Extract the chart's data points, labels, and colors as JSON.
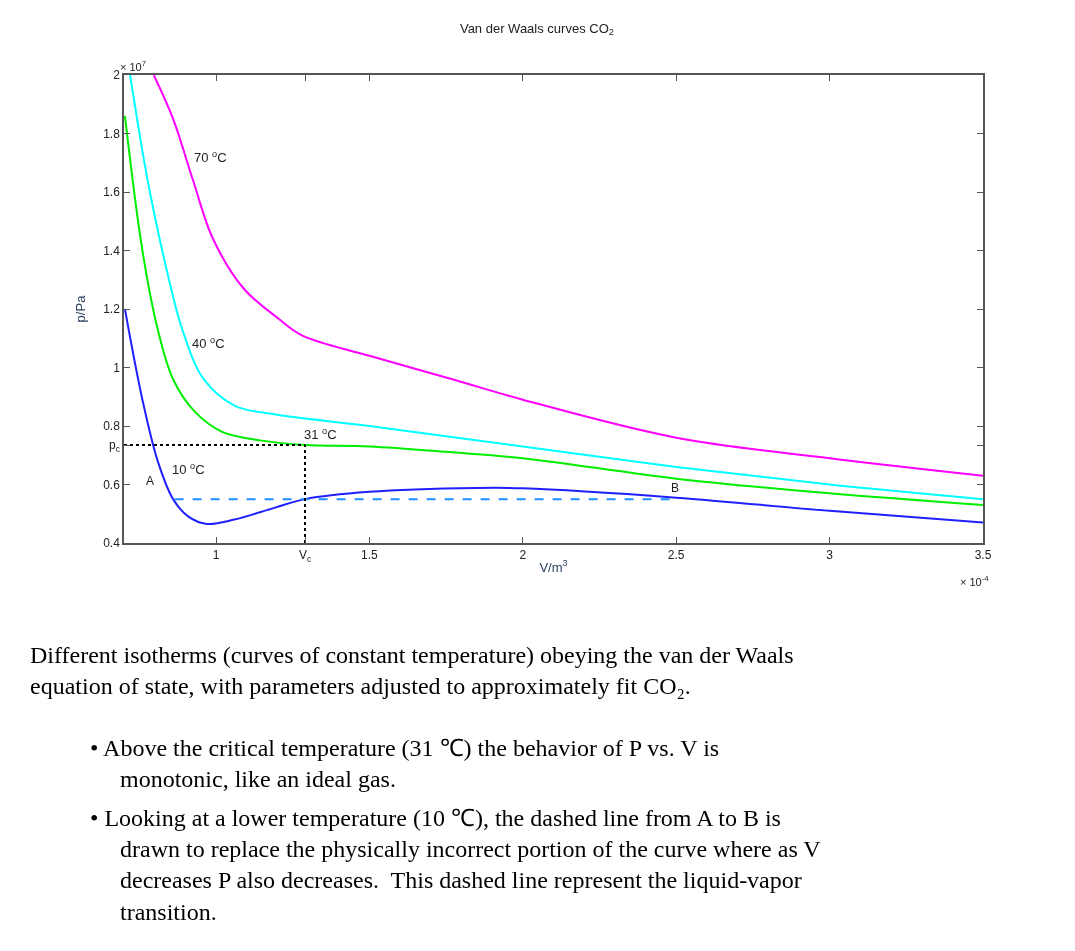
{
  "chart_data": {
    "type": "line",
    "title": "Van der Waals curves CO$_{2}$",
    "xlabel": "V/m$^{3}$",
    "ylabel": "p/Pa",
    "xlim": [
      0.7,
      3.5
    ],
    "ylim": [
      0.4,
      2
    ],
    "xticks": [
      1,
      {
        "value": 1.29,
        "label": "V$_{c}$"
      },
      1.5,
      2,
      2.5,
      3,
      3.5
    ],
    "yticks": [
      0.4,
      0.6,
      {
        "value": 0.735,
        "label": "p$_{c}$"
      },
      0.8,
      1,
      1.2,
      1.4,
      1.6,
      1.8,
      2
    ],
    "legend": false,
    "marker": "none",
    "series": [
      {
        "name": "70 $^{o}$C",
        "color": "#ff00ff",
        "x": [
          0.797,
          0.86,
          0.925,
          0.99,
          1.09,
          1.2,
          1.28,
          1.5,
          1.77,
          2.0,
          2.5,
          3.0,
          3.5
        ],
        "values": [
          2.0,
          1.85,
          1.64,
          1.44,
          1.27,
          1.17,
          1.11,
          1.04,
          0.96,
          0.89,
          0.76,
          0.69,
          0.63
        ]
      },
      {
        "name": "40 $^{o}$C",
        "color": "#00ffff",
        "x": [
          0.72,
          0.76,
          0.79,
          0.84,
          0.89,
          0.96,
          1.06,
          1.19,
          1.5,
          2.0,
          2.5,
          3.0,
          3.5
        ],
        "values": [
          2.0,
          1.74,
          1.57,
          1.33,
          1.13,
          0.96,
          0.87,
          0.84,
          0.8,
          0.73,
          0.66,
          0.6,
          0.55
        ]
      },
      {
        "name": "31 $^{o}$C",
        "color": "#00ee00",
        "x": [
          0.703,
          0.76,
          0.81,
          0.86,
          0.93,
          1.02,
          1.15,
          1.29,
          1.5,
          1.77,
          2.0,
          2.5,
          3.0,
          3.5
        ],
        "values": [
          1.86,
          1.4,
          1.13,
          0.96,
          0.85,
          0.78,
          0.75,
          0.735,
          0.73,
          0.71,
          0.69,
          0.62,
          0.57,
          0.53
        ]
      },
      {
        "name": "10 $^{o}$C",
        "color": "#2020ff",
        "x": [
          0.703,
          0.76,
          0.81,
          0.86,
          0.91,
          0.97,
          1.06,
          1.19,
          1.29,
          1.5,
          1.85,
          2.0,
          2.5,
          3.0,
          3.5
        ],
        "values": [
          1.2,
          0.89,
          0.68,
          0.55,
          0.49,
          0.465,
          0.48,
          0.52,
          0.55,
          0.575,
          0.588,
          0.587,
          0.555,
          0.51,
          0.47
        ]
      },
      {
        "color": "#1e90ff",
        "line_style": "dashed",
        "x": [
          0.865,
          2.48
        ],
        "values": [
          0.55,
          0.55
        ]
      },
      {
        "color": "#000000",
        "line_style": "dotted",
        "x": [
          0.7,
          1.29
        ],
        "values": [
          0.735,
          0.735
        ]
      },
      {
        "color": "#000000",
        "line_style": "dotted",
        "x": [
          1.29,
          1.29
        ],
        "values": [
          0.4,
          0.735
        ]
      }
    ],
    "annotations": [
      "A",
      "B",
      "× 10$^{7}$",
      "× 10$^{-4}$",
      "Different isotherms (curves of constant temperature) obeying the van der Waals equation of state, with parameters adjusted to approximately fit CO₂.",
      "• Above the critical temperature (31 ℃) the behavior of P vs. V is monotonic, like an ideal gas.",
      "• Looking at a lower temperature (10 ℃), the dashed line from A to B is drawn to replace the physically incorrect portion of the curve where as V decreases P also decreases.  This dashed line represent the liquid-vapor transition."
    ]
  }
}
